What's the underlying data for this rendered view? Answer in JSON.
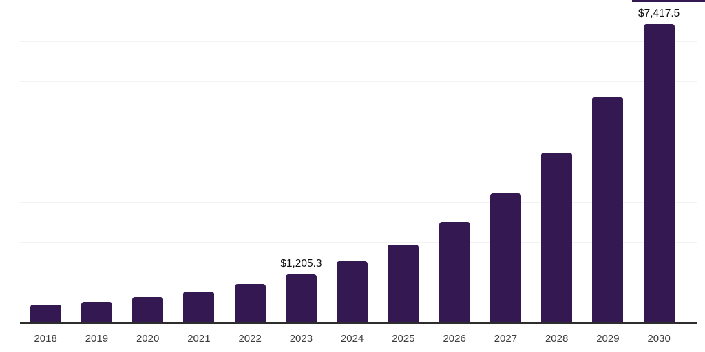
{
  "chart_data": {
    "type": "bar",
    "title": "",
    "categories": [
      "2018",
      "2019",
      "2020",
      "2021",
      "2022",
      "2023",
      "2024",
      "2025",
      "2026",
      "2027",
      "2028",
      "2029",
      "2030"
    ],
    "values": [
      440,
      510,
      635,
      765,
      950,
      1205.3,
      1520,
      1930,
      2490,
      3220,
      4215,
      5605,
      7417.5
    ],
    "data_labels": [
      {
        "category": "2023",
        "text": "$1,205.3"
      },
      {
        "category": "2030",
        "text": "$7,417.5"
      }
    ],
    "xlabel": "",
    "ylabel": "",
    "ylim": [
      0,
      8000
    ],
    "grid_interval": 1000,
    "grid": "on",
    "legend": "none",
    "colors": {
      "bar": "#331852",
      "grid": "#f2f2f2",
      "axis": "#2d2d2d",
      "x_label": "#3c3c3c",
      "data_label": "#111111",
      "background": "#ffffff"
    }
  }
}
